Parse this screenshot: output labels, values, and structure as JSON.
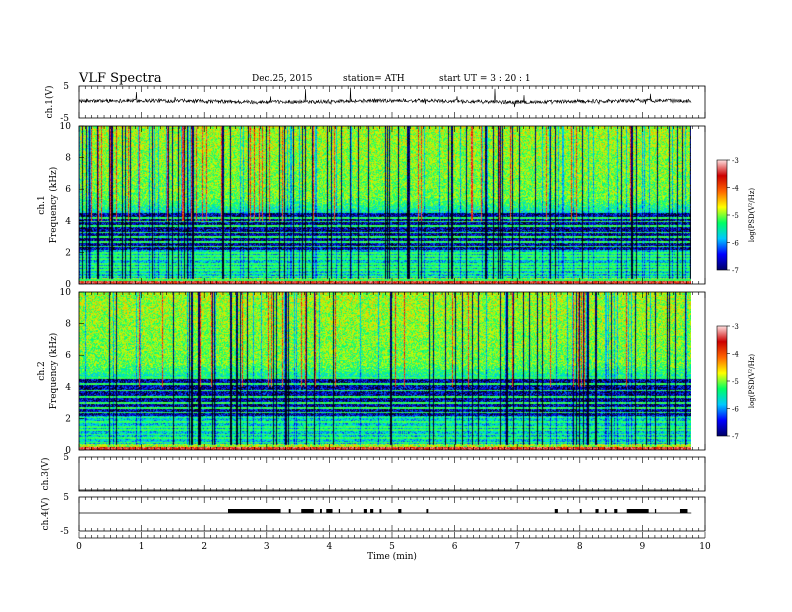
{
  "header": {
    "title": "VLF  Spectra",
    "date": "Dec.25, 2015",
    "station": "station= ATH",
    "start": "start  UT  =    3  : 20 : 1"
  },
  "chart_data": [
    {
      "type": "line",
      "panel": "ch1-waveform",
      "ylabel": "ch.1(V)",
      "yticks": [
        "5",
        "-5"
      ],
      "ylim": [
        -5,
        5
      ],
      "description_values": "continuous noisy waveform near +1 V with occasional spikes"
    },
    {
      "type": "heatmap",
      "panel": "ch1-spectrogram",
      "ylabel": "ch.1\nFrequency  (kHz)",
      "ylabel_lines": [
        "ch.1",
        "Frequency  (kHz)"
      ],
      "yticks": [
        "0",
        "2",
        "4",
        "6",
        "8",
        "10"
      ],
      "ylim": [
        0,
        10
      ],
      "colorbar": {
        "label": "log(PSD(V²/Hz)",
        "ticks": [
          "-3",
          "-4",
          "-5",
          "-6",
          "-7"
        ],
        "range": [
          -7,
          -3
        ],
        "colors": [
          "#000066",
          "#0000ff",
          "#00c8ff",
          "#00ff64",
          "#ffff00",
          "#ff6600",
          "#cc0000",
          "#ffe0e0"
        ]
      }
    },
    {
      "type": "heatmap",
      "panel": "ch2-spectrogram",
      "ylabel": "ch.2\nFrequency  (kHz)",
      "ylabel_lines": [
        "ch.2",
        "Frequency  (kHz)"
      ],
      "yticks": [
        "0",
        "2",
        "4",
        "6",
        "8",
        "10"
      ],
      "ylim": [
        0,
        10
      ],
      "colorbar": {
        "label": "log(PSD(V²/Hz)",
        "ticks": [
          "-3",
          "-4",
          "-5",
          "-6",
          "-7"
        ],
        "range": [
          -7,
          -3
        ],
        "colors": [
          "#000066",
          "#0000ff",
          "#00c8ff",
          "#00ff64",
          "#ffff00",
          "#ff6600",
          "#cc0000",
          "#ffe0e0"
        ]
      }
    },
    {
      "type": "line",
      "panel": "ch3-waveform",
      "ylabel": "ch.3(V)",
      "yticks": [
        "5"
      ],
      "ylim": [
        -5,
        5
      ]
    },
    {
      "type": "line",
      "panel": "ch4-waveform",
      "ylabel": "ch.4(V)",
      "yticks": [
        "5",
        "-5"
      ],
      "ylim": [
        -5,
        5
      ],
      "pulse_intervals_min": [
        [
          2.38,
          3.22
        ],
        [
          3.35,
          3.38
        ],
        [
          3.55,
          3.75
        ],
        [
          3.85,
          3.88
        ],
        [
          3.95,
          4.05
        ],
        [
          4.15,
          4.17
        ],
        [
          4.35,
          4.37
        ],
        [
          4.55,
          4.6
        ],
        [
          4.65,
          4.7
        ],
        [
          4.8,
          4.83
        ],
        [
          5.1,
          5.15
        ],
        [
          5.55,
          5.58
        ],
        [
          7.6,
          7.65
        ],
        [
          7.8,
          7.82
        ],
        [
          8.0,
          8.03
        ],
        [
          8.25,
          8.3
        ],
        [
          8.4,
          8.43
        ],
        [
          8.55,
          8.6
        ],
        [
          8.75,
          9.1
        ],
        [
          9.2,
          9.22
        ],
        [
          9.6,
          9.72
        ]
      ]
    }
  ],
  "xaxis": {
    "label": "Time  (min)",
    "ticks": [
      "0",
      "1",
      "2",
      "3",
      "4",
      "5",
      "6",
      "7",
      "8",
      "9",
      "10"
    ],
    "xlim": [
      0,
      10
    ],
    "data_end_min": 9.78
  }
}
